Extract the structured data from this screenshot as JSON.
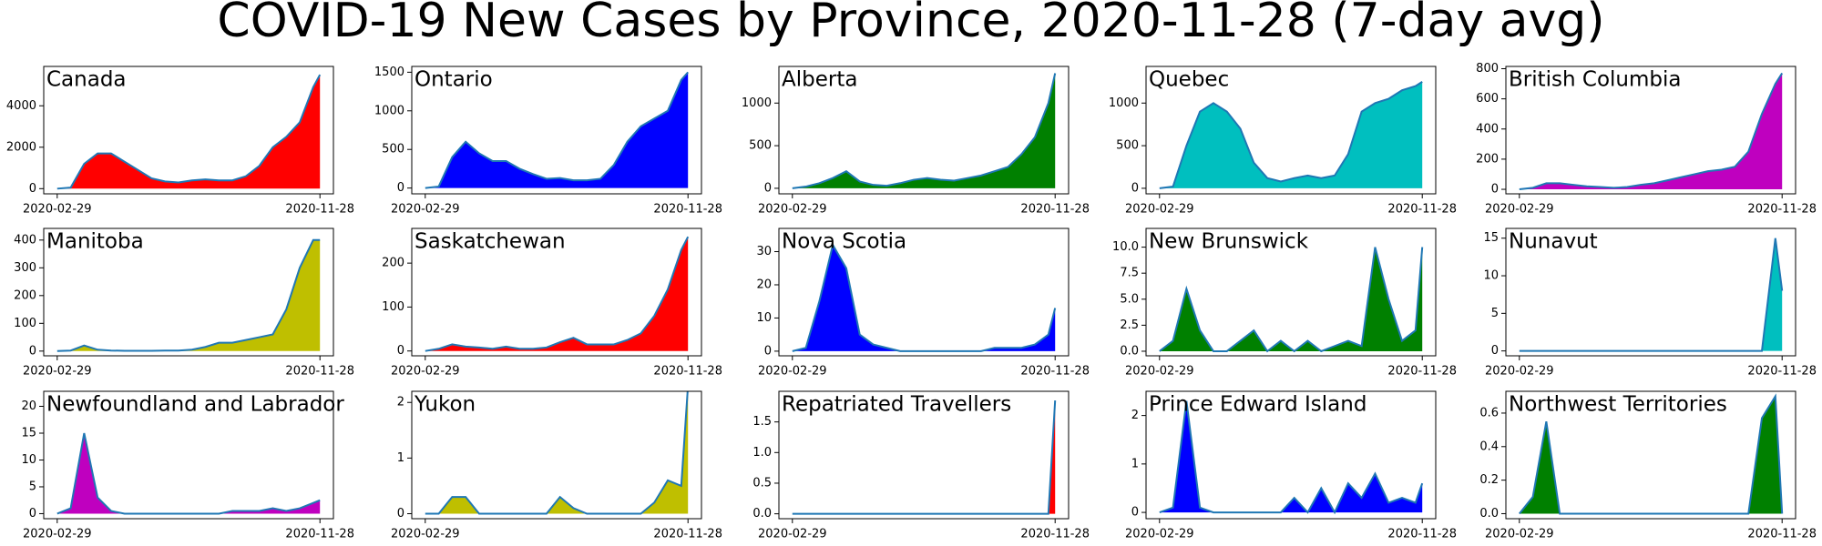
{
  "title": "COVID-19 New Cases by Province, 2020-11-28 (7-day avg)",
  "chart_data": [
    {
      "type": "area",
      "title": "Canada",
      "color": "#ff0000",
      "line_color": "#1f77b4",
      "x": [
        "2020-02-29",
        "2020-03-14",
        "2020-03-28",
        "2020-04-11",
        "2020-04-25",
        "2020-05-09",
        "2020-05-23",
        "2020-06-06",
        "2020-06-20",
        "2020-07-04",
        "2020-07-18",
        "2020-08-01",
        "2020-08-15",
        "2020-08-29",
        "2020-09-12",
        "2020-09-26",
        "2020-10-10",
        "2020-10-24",
        "2020-11-07",
        "2020-11-21",
        "2020-11-28"
      ],
      "values": [
        0,
        50,
        1200,
        1700,
        1700,
        1300,
        900,
        500,
        350,
        300,
        400,
        450,
        400,
        400,
        600,
        1100,
        2000,
        2500,
        3200,
        4900,
        5500
      ],
      "xlim": [
        "2020-02-15",
        "2020-12-12"
      ],
      "xticks": [
        "2020-02-29",
        "2020-11-28"
      ],
      "ylim": [
        -250,
        5900
      ],
      "yticks": [
        0,
        2000,
        4000
      ]
    },
    {
      "type": "area",
      "title": "Ontario",
      "color": "#0000ff",
      "line_color": "#1f77b4",
      "x": [
        "2020-02-29",
        "2020-03-14",
        "2020-03-28",
        "2020-04-11",
        "2020-04-25",
        "2020-05-09",
        "2020-05-23",
        "2020-06-06",
        "2020-06-20",
        "2020-07-04",
        "2020-07-18",
        "2020-08-01",
        "2020-08-15",
        "2020-08-29",
        "2020-09-12",
        "2020-09-26",
        "2020-10-10",
        "2020-10-24",
        "2020-11-07",
        "2020-11-21",
        "2020-11-28"
      ],
      "values": [
        0,
        20,
        400,
        600,
        450,
        350,
        350,
        250,
        180,
        120,
        130,
        100,
        100,
        120,
        300,
        600,
        800,
        900,
        1000,
        1400,
        1500
      ],
      "xlim": [
        "2020-02-15",
        "2020-12-12"
      ],
      "xticks": [
        "2020-02-29",
        "2020-11-28"
      ],
      "ylim": [
        -75,
        1575
      ],
      "yticks": [
        0,
        500,
        1000,
        1500
      ]
    },
    {
      "type": "area",
      "title": "Alberta",
      "color": "#008000",
      "line_color": "#1f77b4",
      "x": [
        "2020-02-29",
        "2020-03-14",
        "2020-03-28",
        "2020-04-11",
        "2020-04-25",
        "2020-05-09",
        "2020-05-23",
        "2020-06-06",
        "2020-06-20",
        "2020-07-04",
        "2020-07-18",
        "2020-08-01",
        "2020-08-15",
        "2020-08-29",
        "2020-09-12",
        "2020-09-26",
        "2020-10-10",
        "2020-10-24",
        "2020-11-07",
        "2020-11-21",
        "2020-11-28"
      ],
      "values": [
        0,
        20,
        60,
        120,
        200,
        80,
        40,
        30,
        60,
        100,
        120,
        100,
        90,
        120,
        150,
        200,
        250,
        400,
        600,
        1000,
        1350
      ],
      "xlim": [
        "2020-02-15",
        "2020-12-12"
      ],
      "xticks": [
        "2020-02-29",
        "2020-11-28"
      ],
      "ylim": [
        -65,
        1430
      ],
      "yticks": [
        0,
        500,
        1000
      ]
    },
    {
      "type": "area",
      "title": "Quebec",
      "color": "#00bfbf",
      "line_color": "#1f77b4",
      "x": [
        "2020-02-29",
        "2020-03-14",
        "2020-03-28",
        "2020-04-11",
        "2020-04-25",
        "2020-05-09",
        "2020-05-23",
        "2020-06-06",
        "2020-06-20",
        "2020-07-04",
        "2020-07-18",
        "2020-08-01",
        "2020-08-15",
        "2020-08-29",
        "2020-09-12",
        "2020-09-26",
        "2020-10-10",
        "2020-10-24",
        "2020-11-07",
        "2020-11-21",
        "2020-11-28"
      ],
      "values": [
        0,
        20,
        500,
        900,
        1000,
        900,
        700,
        300,
        120,
        80,
        120,
        150,
        120,
        150,
        400,
        900,
        1000,
        1050,
        1150,
        1200,
        1250
      ],
      "xlim": [
        "2020-02-15",
        "2020-12-12"
      ],
      "xticks": [
        "2020-02-29",
        "2020-11-28"
      ],
      "ylim": [
        -65,
        1430
      ],
      "yticks": [
        0,
        500,
        1000
      ]
    },
    {
      "type": "area",
      "title": "British Columbia",
      "color": "#bf00bf",
      "line_color": "#1f77b4",
      "x": [
        "2020-02-29",
        "2020-03-14",
        "2020-03-28",
        "2020-04-11",
        "2020-04-25",
        "2020-05-09",
        "2020-05-23",
        "2020-06-06",
        "2020-06-20",
        "2020-07-04",
        "2020-07-18",
        "2020-08-01",
        "2020-08-15",
        "2020-08-29",
        "2020-09-12",
        "2020-09-26",
        "2020-10-10",
        "2020-10-24",
        "2020-11-07",
        "2020-11-21",
        "2020-11-28"
      ],
      "values": [
        0,
        10,
        40,
        40,
        30,
        20,
        15,
        10,
        15,
        30,
        40,
        60,
        80,
        100,
        120,
        130,
        150,
        250,
        500,
        700,
        770
      ],
      "xlim": [
        "2020-02-15",
        "2020-12-12"
      ],
      "xticks": [
        "2020-02-29",
        "2020-11-28"
      ],
      "ylim": [
        -30,
        815
      ],
      "yticks": [
        0,
        200,
        400,
        600,
        800
      ]
    },
    {
      "type": "area",
      "title": "Manitoba",
      "color": "#bfbf00",
      "line_color": "#1f77b4",
      "x": [
        "2020-02-29",
        "2020-03-14",
        "2020-03-28",
        "2020-04-11",
        "2020-04-25",
        "2020-05-09",
        "2020-05-23",
        "2020-06-06",
        "2020-06-20",
        "2020-07-04",
        "2020-07-18",
        "2020-08-01",
        "2020-08-15",
        "2020-08-29",
        "2020-09-12",
        "2020-09-26",
        "2020-10-10",
        "2020-10-24",
        "2020-11-07",
        "2020-11-21",
        "2020-11-28"
      ],
      "values": [
        0,
        2,
        20,
        5,
        2,
        1,
        1,
        1,
        2,
        2,
        5,
        15,
        30,
        30,
        40,
        50,
        60,
        150,
        300,
        400,
        400
      ],
      "xlim": [
        "2020-02-15",
        "2020-12-12"
      ],
      "xticks": [
        "2020-02-29",
        "2020-11-28"
      ],
      "ylim": [
        -17,
        442
      ],
      "yticks": [
        0,
        100,
        200,
        300,
        400
      ]
    },
    {
      "type": "area",
      "title": "Saskatchewan",
      "color": "#ff0000",
      "line_color": "#1f77b4",
      "x": [
        "2020-02-29",
        "2020-03-14",
        "2020-03-28",
        "2020-04-11",
        "2020-04-25",
        "2020-05-09",
        "2020-05-23",
        "2020-06-06",
        "2020-06-20",
        "2020-07-04",
        "2020-07-18",
        "2020-08-01",
        "2020-08-15",
        "2020-08-29",
        "2020-09-12",
        "2020-09-26",
        "2020-10-10",
        "2020-10-24",
        "2020-11-07",
        "2020-11-21",
        "2020-11-28"
      ],
      "values": [
        0,
        5,
        15,
        10,
        8,
        5,
        10,
        5,
        5,
        8,
        20,
        30,
        15,
        15,
        15,
        25,
        40,
        80,
        140,
        230,
        260
      ],
      "xlim": [
        "2020-02-15",
        "2020-12-12"
      ],
      "xticks": [
        "2020-02-29",
        "2020-11-28"
      ],
      "ylim": [
        -11,
        279
      ],
      "yticks": [
        0,
        100,
        200
      ]
    },
    {
      "type": "area",
      "title": "Nova Scotia",
      "color": "#0000ff",
      "line_color": "#1f77b4",
      "x": [
        "2020-02-29",
        "2020-03-14",
        "2020-03-28",
        "2020-04-11",
        "2020-04-25",
        "2020-05-09",
        "2020-05-23",
        "2020-06-06",
        "2020-06-20",
        "2020-07-04",
        "2020-07-18",
        "2020-08-01",
        "2020-08-15",
        "2020-08-29",
        "2020-09-12",
        "2020-09-26",
        "2020-10-10",
        "2020-10-24",
        "2020-11-07",
        "2020-11-21",
        "2020-11-28"
      ],
      "values": [
        0,
        1,
        15,
        32,
        25,
        5,
        2,
        1,
        0,
        0,
        0,
        0,
        0,
        0,
        0,
        1,
        1,
        1,
        2,
        5,
        13
      ],
      "xlim": [
        "2020-02-15",
        "2020-12-12"
      ],
      "xticks": [
        "2020-02-29",
        "2020-11-28"
      ],
      "ylim": [
        -1.4,
        37
      ],
      "yticks": [
        0,
        10,
        20,
        30
      ]
    },
    {
      "type": "area",
      "title": "New Brunswick",
      "color": "#008000",
      "line_color": "#1f77b4",
      "x": [
        "2020-02-29",
        "2020-03-14",
        "2020-03-28",
        "2020-04-11",
        "2020-04-25",
        "2020-05-09",
        "2020-05-23",
        "2020-06-06",
        "2020-06-20",
        "2020-07-04",
        "2020-07-18",
        "2020-08-01",
        "2020-08-15",
        "2020-08-29",
        "2020-09-12",
        "2020-09-26",
        "2020-10-10",
        "2020-10-24",
        "2020-11-07",
        "2020-11-21",
        "2020-11-28"
      ],
      "values": [
        0,
        1,
        6,
        2,
        0,
        0,
        1,
        2,
        0,
        1,
        0,
        1,
        0,
        0.5,
        1,
        0.5,
        10,
        5,
        1,
        2,
        10
      ],
      "xlim": [
        "2020-02-15",
        "2020-12-12"
      ],
      "xticks": [
        "2020-02-29",
        "2020-11-28"
      ],
      "ylim": [
        -0.44,
        11.8
      ],
      "yticks": [
        {
          "value": 0,
          "label": "0.0"
        },
        2.5,
        {
          "value": 5,
          "label": "5.0"
        },
        7.5,
        {
          "value": 10,
          "label": "10.0"
        }
      ]
    },
    {
      "type": "area",
      "title": "Nunavut",
      "color": "#00bfbf",
      "line_color": "#1f77b4",
      "x": [
        "2020-02-29",
        "2020-03-14",
        "2020-03-28",
        "2020-04-11",
        "2020-04-25",
        "2020-05-09",
        "2020-05-23",
        "2020-06-06",
        "2020-06-20",
        "2020-07-04",
        "2020-07-18",
        "2020-08-01",
        "2020-08-15",
        "2020-08-29",
        "2020-09-12",
        "2020-09-26",
        "2020-10-10",
        "2020-10-24",
        "2020-11-07",
        "2020-11-21",
        "2020-11-28"
      ],
      "values": [
        0,
        0,
        0,
        0,
        0,
        0,
        0,
        0,
        0,
        0,
        0,
        0,
        0,
        0,
        0,
        0,
        0,
        0,
        0,
        15,
        8
      ],
      "xlim": [
        "2020-02-15",
        "2020-12-12"
      ],
      "xticks": [
        "2020-02-29",
        "2020-11-28"
      ],
      "ylim": [
        -0.65,
        16.3
      ],
      "yticks": [
        0,
        5,
        10,
        15
      ]
    },
    {
      "type": "area",
      "title": "Newfoundland and Labrador",
      "color": "#bf00bf",
      "line_color": "#1f77b4",
      "x": [
        "2020-02-29",
        "2020-03-14",
        "2020-03-28",
        "2020-04-11",
        "2020-04-25",
        "2020-05-09",
        "2020-05-23",
        "2020-06-06",
        "2020-06-20",
        "2020-07-04",
        "2020-07-18",
        "2020-08-01",
        "2020-08-15",
        "2020-08-29",
        "2020-09-12",
        "2020-09-26",
        "2020-10-10",
        "2020-10-24",
        "2020-11-07",
        "2020-11-21",
        "2020-11-28"
      ],
      "values": [
        0,
        1,
        15,
        3,
        0.5,
        0,
        0,
        0,
        0,
        0,
        0,
        0,
        0,
        0.5,
        0.5,
        0.5,
        1,
        0.5,
        1,
        2,
        2.5
      ],
      "xlim": [
        "2020-02-15",
        "2020-12-12"
      ],
      "xticks": [
        "2020-02-29",
        "2020-11-28"
      ],
      "ylim": [
        -0.94,
        22.8
      ],
      "yticks": [
        0,
        5,
        10,
        15,
        20
      ]
    },
    {
      "type": "area",
      "title": "Yukon",
      "color": "#bfbf00",
      "line_color": "#1f77b4",
      "x": [
        "2020-02-29",
        "2020-03-14",
        "2020-03-28",
        "2020-04-11",
        "2020-04-25",
        "2020-05-09",
        "2020-05-23",
        "2020-06-06",
        "2020-06-20",
        "2020-07-04",
        "2020-07-18",
        "2020-08-01",
        "2020-08-15",
        "2020-08-29",
        "2020-09-12",
        "2020-09-26",
        "2020-10-10",
        "2020-10-24",
        "2020-11-07",
        "2020-11-21",
        "2020-11-28"
      ],
      "values": [
        0,
        0,
        0.3,
        0.3,
        0,
        0,
        0,
        0,
        0,
        0,
        0.3,
        0.1,
        0,
        0,
        0,
        0,
        0,
        0.2,
        0.6,
        0.5,
        2.3
      ],
      "xlim": [
        "2020-02-15",
        "2020-12-12"
      ],
      "xticks": [
        "2020-02-29",
        "2020-11-28"
      ],
      "ylim": [
        -0.09,
        2.2
      ],
      "yticks": [
        0,
        1,
        2
      ]
    },
    {
      "type": "area",
      "title": "Repatriated Travellers",
      "color": "#ff0000",
      "line_color": "#1f77b4",
      "x": [
        "2020-02-29",
        "2020-03-14",
        "2020-03-28",
        "2020-04-11",
        "2020-04-25",
        "2020-05-09",
        "2020-05-23",
        "2020-06-06",
        "2020-06-20",
        "2020-07-04",
        "2020-07-18",
        "2020-08-01",
        "2020-08-15",
        "2020-08-29",
        "2020-09-12",
        "2020-09-26",
        "2020-10-10",
        "2020-10-24",
        "2020-11-07",
        "2020-11-21",
        "2020-11-28"
      ],
      "values": [
        0,
        0,
        0,
        0,
        0,
        0,
        0,
        0,
        0,
        0,
        0,
        0,
        0,
        0,
        0,
        0,
        0,
        0,
        0,
        0,
        1.85
      ],
      "xlim": [
        "2020-02-15",
        "2020-12-12"
      ],
      "xticks": [
        "2020-02-29",
        "2020-11-28"
      ],
      "ylim": [
        -0.08,
        2.0
      ],
      "yticks": [
        {
          "value": 0,
          "label": "0.0"
        },
        0.5,
        {
          "value": 1,
          "label": "1.0"
        },
        1.5
      ]
    },
    {
      "type": "area",
      "title": "Prince Edward Island",
      "color": "#0000ff",
      "line_color": "#1f77b4",
      "x": [
        "2020-02-29",
        "2020-03-14",
        "2020-03-28",
        "2020-04-11",
        "2020-04-25",
        "2020-05-09",
        "2020-05-23",
        "2020-06-06",
        "2020-06-20",
        "2020-07-04",
        "2020-07-18",
        "2020-08-01",
        "2020-08-15",
        "2020-08-29",
        "2020-09-12",
        "2020-09-26",
        "2020-10-10",
        "2020-10-24",
        "2020-11-07",
        "2020-11-21",
        "2020-11-28"
      ],
      "values": [
        0,
        0.1,
        2.3,
        0.1,
        0,
        0,
        0,
        0,
        0,
        0,
        0.3,
        0,
        0.5,
        0,
        0.6,
        0.3,
        0.8,
        0.2,
        0.3,
        0.2,
        0.6
      ],
      "xlim": [
        "2020-02-15",
        "2020-12-12"
      ],
      "xticks": [
        "2020-02-29",
        "2020-11-28"
      ],
      "ylim": [
        -0.13,
        2.5
      ],
      "yticks": [
        0,
        1,
        2
      ]
    },
    {
      "type": "area",
      "title": "Northwest Territories",
      "color": "#008000",
      "line_color": "#1f77b4",
      "x": [
        "2020-02-29",
        "2020-03-14",
        "2020-03-28",
        "2020-04-11",
        "2020-04-25",
        "2020-05-09",
        "2020-05-23",
        "2020-06-06",
        "2020-06-20",
        "2020-07-04",
        "2020-07-18",
        "2020-08-01",
        "2020-08-15",
        "2020-08-29",
        "2020-09-12",
        "2020-09-26",
        "2020-10-10",
        "2020-10-24",
        "2020-11-07",
        "2020-11-21",
        "2020-11-28"
      ],
      "values": [
        0,
        0.1,
        0.55,
        0,
        0,
        0,
        0,
        0,
        0,
        0,
        0,
        0,
        0,
        0,
        0,
        0,
        0,
        0,
        0.57,
        0.7,
        0
      ],
      "xlim": [
        "2020-02-15",
        "2020-12-12"
      ],
      "xticks": [
        "2020-02-29",
        "2020-11-28"
      ],
      "ylim": [
        -0.03,
        0.73
      ],
      "yticks": [
        {
          "value": 0,
          "label": "0.0"
        },
        0.2,
        0.4,
        0.6
      ]
    }
  ]
}
